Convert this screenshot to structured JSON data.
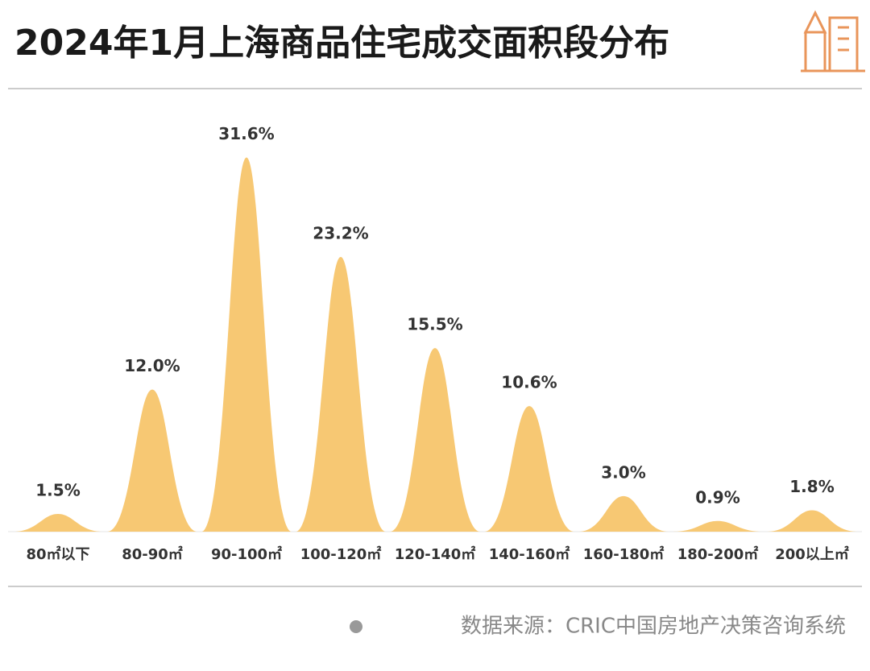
{
  "chart_data": {
    "type": "peak",
    "title": "2024年1月上海商品住宅成交面积段分布",
    "categories": [
      "80㎡以下",
      "80-90㎡",
      "90-100㎡",
      "100-120㎡",
      "120-140㎡",
      "140-160㎡",
      "160-180㎡",
      "180-200㎡",
      "200以上㎡"
    ],
    "values": [
      1.5,
      12.0,
      31.6,
      23.2,
      15.5,
      10.6,
      3.0,
      0.9,
      1.8
    ],
    "value_labels": [
      "1.5%",
      "12.0%",
      "31.6%",
      "23.2%",
      "15.5%",
      "10.6%",
      "3.0%",
      "0.9%",
      "1.8%"
    ],
    "color": "#f7c873",
    "source": "数据来源：CRIC中国房地产决策咨询系统"
  }
}
